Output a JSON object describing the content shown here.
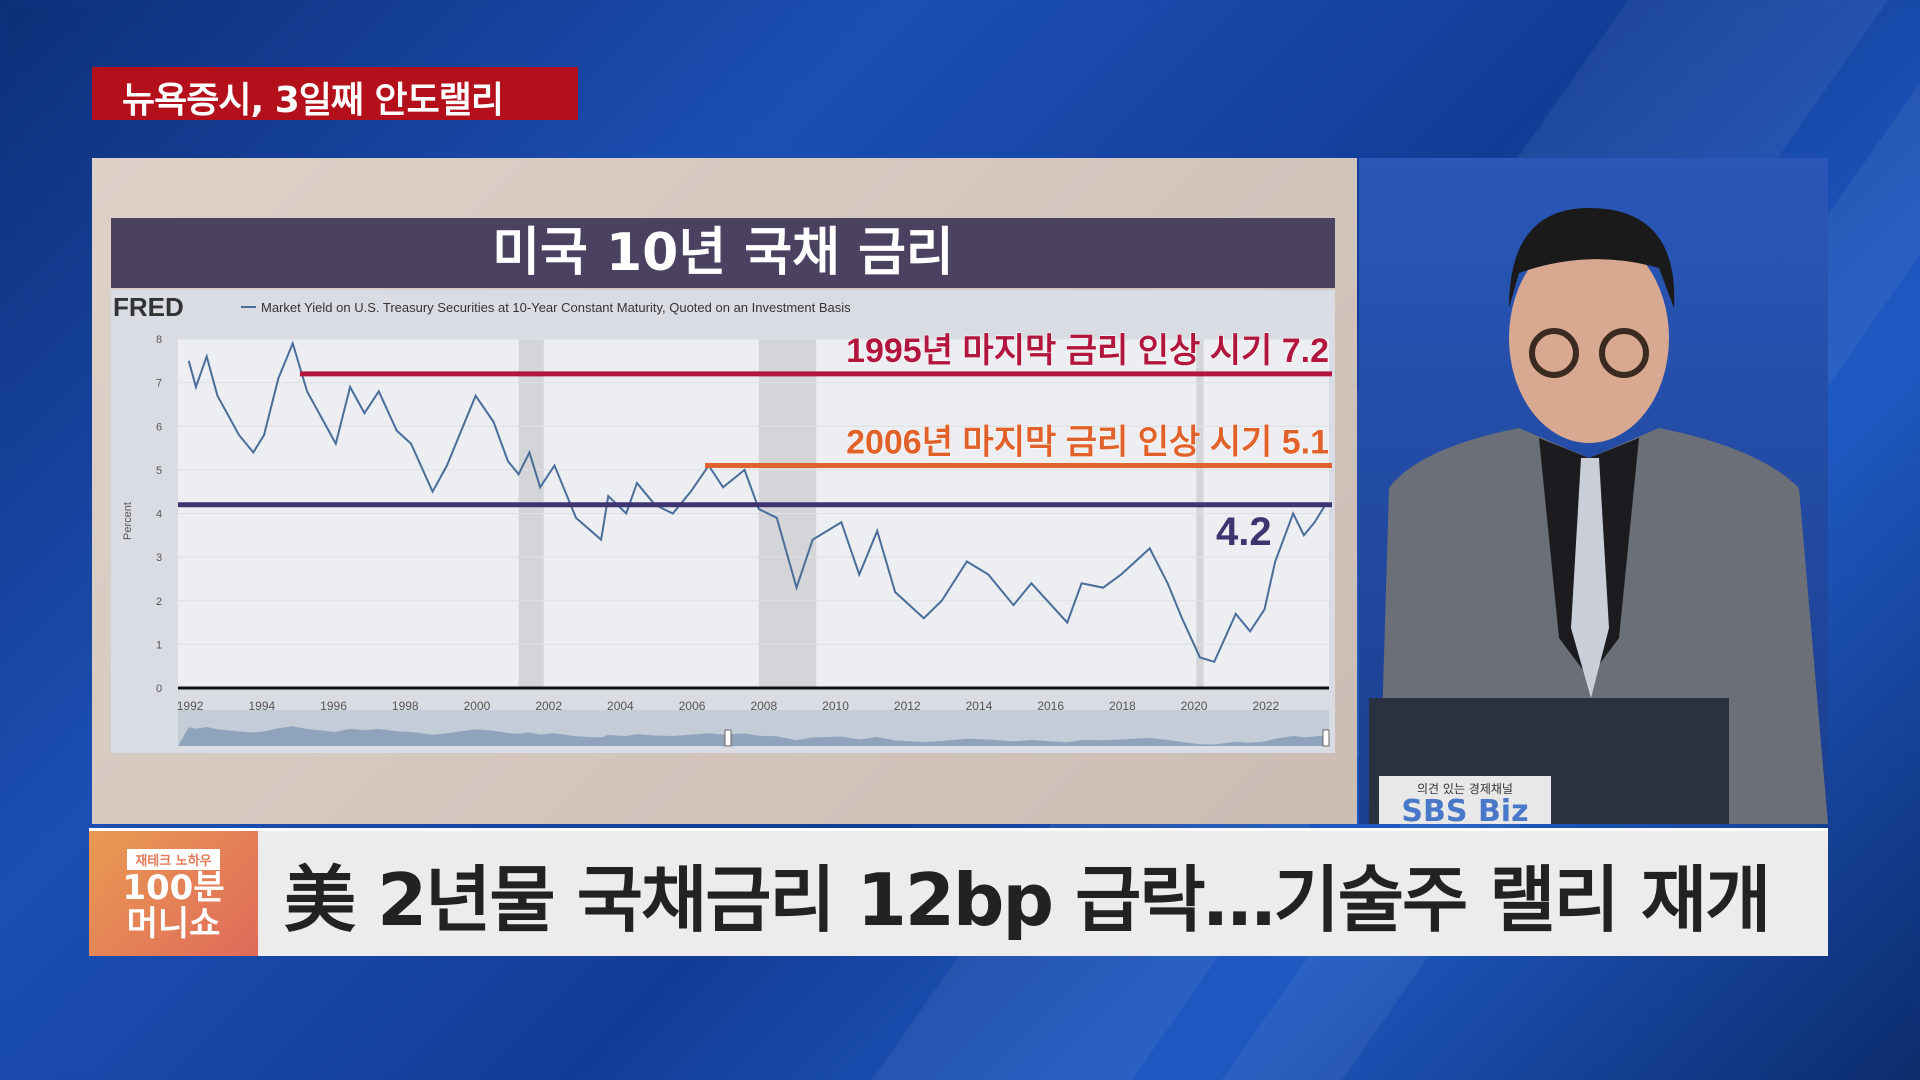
{
  "topic_label": "뉴욕증시, 3일째 안도랠리",
  "chart_title": "미국 10년 국채 금리",
  "headline": "美 2년물 국채금리 12bp 급락…기술주 랠리 재개",
  "show_logo": {
    "tag": "재테크 노하우",
    "line1": "100분",
    "line2": "머니쇼"
  },
  "channel_logo": {
    "slogan": "의견 있는 경제채널",
    "name": "SBS Biz"
  },
  "chart_data": {
    "type": "line",
    "source_logo": "FRED",
    "legend": "Market Yield on U.S. Treasury Securities at 10-Year Constant Maturity, Quoted on an Investment Basis",
    "ylabel": "Percent",
    "ylim": [
      0,
      8
    ],
    "yticks": [
      "0",
      "1",
      "2",
      "3",
      "4",
      "5",
      "6",
      "7",
      "8"
    ],
    "xlim": [
      1991.7,
      2023.8
    ],
    "xticks": [
      "1992",
      "1994",
      "1996",
      "1998",
      "2000",
      "2002",
      "2004",
      "2006",
      "2008",
      "2010",
      "2012",
      "2014",
      "2016",
      "2018",
      "2020",
      "2022"
    ],
    "recessions": [
      [
        2001.2,
        2001.9
      ],
      [
        2007.9,
        2009.5
      ],
      [
        2020.1,
        2020.3
      ]
    ],
    "series": {
      "x": [
        1992.0,
        1992.2,
        1992.5,
        1992.8,
        1993.0,
        1993.4,
        1993.8,
        1994.1,
        1994.5,
        1994.9,
        1995.3,
        1995.7,
        1996.1,
        1996.5,
        1996.9,
        1997.3,
        1997.8,
        1998.2,
        1998.8,
        1999.2,
        1999.6,
        2000.0,
        2000.5,
        2000.9,
        2001.2,
        2001.5,
        2001.8,
        2002.2,
        2002.8,
        2003.5,
        2003.7,
        2004.2,
        2004.5,
        2005.0,
        2005.5,
        2006.0,
        2006.5,
        2006.9,
        2007.5,
        2007.9,
        2008.4,
        2008.95,
        2009.4,
        2010.2,
        2010.7,
        2011.2,
        2011.7,
        2012.5,
        2013.0,
        2013.7,
        2014.3,
        2015.0,
        2015.5,
        2016.5,
        2016.9,
        2017.5,
        2018.0,
        2018.8,
        2019.3,
        2019.7,
        2020.2,
        2020.6,
        2021.2,
        2021.6,
        2022.0,
        2022.3,
        2022.8,
        2023.1,
        2023.4,
        2023.7
      ],
      "y": [
        7.5,
        6.9,
        7.6,
        6.7,
        6.4,
        5.8,
        5.4,
        5.8,
        7.1,
        7.9,
        6.8,
        6.2,
        5.6,
        6.9,
        6.3,
        6.8,
        5.9,
        5.6,
        4.5,
        5.1,
        5.9,
        6.7,
        6.1,
        5.2,
        4.9,
        5.4,
        4.6,
        5.1,
        3.9,
        3.4,
        4.4,
        4.0,
        4.7,
        4.2,
        4.0,
        4.5,
        5.1,
        4.6,
        5.0,
        4.1,
        3.9,
        2.3,
        3.4,
        3.8,
        2.6,
        3.6,
        2.2,
        1.6,
        2.0,
        2.9,
        2.6,
        1.9,
        2.4,
        1.5,
        2.4,
        2.3,
        2.6,
        3.2,
        2.4,
        1.6,
        0.7,
        0.6,
        1.7,
        1.3,
        1.8,
        2.9,
        4.0,
        3.5,
        3.8,
        4.2
      ]
    },
    "annotations": [
      {
        "label": "1995년 마지막 금리 인상 시기 7.2",
        "value": 7.2,
        "from": 1995.1,
        "color": "#b0163e"
      },
      {
        "label": "2006년 마지막 금리 인상 시기 5.1",
        "value": 5.1,
        "from": 2006.4,
        "color": "#e0622a"
      },
      {
        "label": "4.2",
        "value": 4.2,
        "from": 1991.7,
        "color": "#3e3470"
      }
    ]
  }
}
